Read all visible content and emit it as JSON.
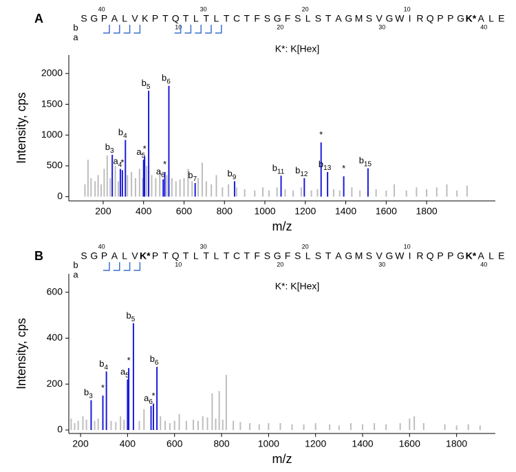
{
  "chart_data": [
    {
      "type": "bar",
      "panel_label": "A",
      "sequence": [
        "S",
        "G",
        "P",
        "A",
        "L",
        "V",
        "K",
        "P",
        "T",
        "Q",
        "T",
        "L",
        "T",
        "L",
        "T",
        "C",
        "T",
        "F",
        "S",
        "G",
        "F",
        "S",
        "L",
        "S",
        "T",
        "A",
        "G",
        "M",
        "S",
        "V",
        "G",
        "W",
        "I",
        "R",
        "Q",
        "P",
        "P",
        "G",
        "K*",
        "A",
        "L",
        "E"
      ],
      "numbers_above": [
        null,
        null,
        40,
        null,
        null,
        null,
        null,
        null,
        null,
        null,
        null,
        null,
        30,
        null,
        null,
        null,
        null,
        null,
        null,
        null,
        null,
        null,
        20,
        null,
        null,
        null,
        null,
        null,
        null,
        null,
        null,
        null,
        10,
        null,
        null,
        null,
        null,
        null,
        null,
        null,
        null,
        null
      ],
      "numbers_below": [
        null,
        null,
        null,
        null,
        null,
        null,
        null,
        null,
        null,
        10,
        null,
        null,
        null,
        null,
        null,
        null,
        null,
        null,
        null,
        20,
        null,
        null,
        null,
        null,
        null,
        null,
        null,
        null,
        null,
        30,
        null,
        null,
        null,
        null,
        null,
        null,
        null,
        null,
        null,
        40,
        null,
        null
      ],
      "fragment_rows": [
        "b",
        "a"
      ],
      "highlight_color": "#3a6fd0",
      "modification_note": "K*: K[Hex]",
      "xlabel": "m/z",
      "ylabel": "Intensity, cps",
      "xlim": [
        30,
        2140
      ],
      "xticks": [
        200,
        400,
        600,
        800,
        1000,
        1200,
        1400,
        1600,
        1800
      ],
      "ylim": [
        -70,
        2300
      ],
      "yticks": [
        0,
        500,
        1000,
        1500,
        2000
      ],
      "series": [
        {
          "color": "#bdbdbd",
          "x": [
            110,
            125,
            140,
            160,
            175,
            190,
            205,
            220,
            235,
            260,
            275,
            320,
            340,
            360,
            380,
            395,
            415,
            440,
            460,
            480,
            515,
            540,
            560,
            580,
            600,
            620,
            640,
            670,
            690,
            710,
            735,
            760,
            790,
            820,
            860,
            900,
            950,
            990,
            1020,
            1060,
            1100,
            1140,
            1180,
            1230,
            1260,
            1340,
            1370,
            1430,
            1470,
            1550,
            1600,
            1640,
            1700,
            1750,
            1800,
            1850,
            1900,
            1950,
            2000
          ],
          "values": [
            200,
            600,
            300,
            250,
            350,
            200,
            450,
            670,
            300,
            500,
            250,
            350,
            400,
            300,
            450,
            300,
            500,
            350,
            300,
            400,
            350,
            300,
            250,
            280,
            300,
            450,
            250,
            300,
            550,
            250,
            200,
            350,
            150,
            200,
            150,
            120,
            100,
            150,
            100,
            150,
            120,
            100,
            150,
            100,
            120,
            120,
            100,
            150,
            100,
            120,
            100,
            200,
            100,
            150,
            120,
            150,
            200,
            100,
            180
          ]
        },
        {
          "color": "#1a1adb",
          "x": [
            245,
            285,
            295,
            310,
            400,
            405,
            425,
            497,
            505,
            525,
            655,
            850,
            1080,
            1195,
            1278,
            1310,
            1390,
            1510
          ],
          "values": [
            680,
            450,
            430,
            920,
            600,
            650,
            1720,
            280,
            400,
            1800,
            220,
            250,
            340,
            300,
            880,
            400,
            330,
            460
          ],
          "peak_labels": [
            {
              "text": "b",
              "sub": "3"
            },
            {
              "text": "a",
              "sub": "4"
            },
            {
              "text": "*"
            },
            {
              "text": "b",
              "sub": "4"
            },
            {
              "text": "a",
              "sub": "5"
            },
            {
              "text": "*"
            },
            {
              "text": "b",
              "sub": "5"
            },
            {
              "text": "a",
              "sub": "6"
            },
            {
              "text": "*"
            },
            {
              "text": "b",
              "sub": "6"
            },
            {
              "text": "b",
              "sub": "7"
            },
            {
              "text": "b",
              "sub": "9"
            },
            {
              "text": "b",
              "sub": "11"
            },
            {
              "text": "b",
              "sub": "12"
            },
            {
              "text": "*"
            },
            {
              "text": "b",
              "sub": "13"
            },
            {
              "text": "*"
            },
            {
              "text": "b",
              "sub": "15"
            }
          ]
        }
      ]
    },
    {
      "type": "bar",
      "panel_label": "B",
      "sequence": [
        "S",
        "G",
        "P",
        "A",
        "L",
        "V",
        "K*",
        "P",
        "T",
        "Q",
        "T",
        "L",
        "T",
        "L",
        "T",
        "C",
        "T",
        "F",
        "S",
        "G",
        "F",
        "S",
        "L",
        "S",
        "T",
        "A",
        "G",
        "M",
        "S",
        "V",
        "G",
        "W",
        "I",
        "R",
        "Q",
        "P",
        "P",
        "G",
        "K*",
        "A",
        "L",
        "E"
      ],
      "numbers_above": [
        null,
        null,
        40,
        null,
        null,
        null,
        null,
        null,
        null,
        null,
        null,
        null,
        30,
        null,
        null,
        null,
        null,
        null,
        null,
        null,
        null,
        null,
        20,
        null,
        null,
        null,
        null,
        null,
        null,
        null,
        null,
        null,
        10,
        null,
        null,
        null,
        null,
        null,
        null,
        null,
        null,
        null
      ],
      "numbers_below": [
        null,
        null,
        null,
        null,
        null,
        null,
        null,
        null,
        null,
        10,
        null,
        null,
        null,
        null,
        null,
        null,
        null,
        null,
        null,
        20,
        null,
        null,
        null,
        null,
        null,
        null,
        null,
        null,
        null,
        30,
        null,
        null,
        null,
        null,
        null,
        null,
        null,
        null,
        null,
        40,
        null,
        null
      ],
      "fragment_rows": [
        "b",
        "a"
      ],
      "highlight_color": "#3a6fd0",
      "modification_note": "K*: K[Hex]",
      "xlabel": "m/z",
      "ylabel": "Intensity, cps",
      "xlim": [
        150,
        1965
      ],
      "xticks": [
        200,
        400,
        600,
        800,
        1000,
        1200,
        1400,
        1600,
        1800
      ],
      "ylim": [
        -15,
        680
      ],
      "yticks": [
        0,
        200,
        400,
        600
      ],
      "series": [
        {
          "color": "#bdbdbd",
          "x": [
            160,
            175,
            190,
            210,
            225,
            260,
            275,
            330,
            350,
            370,
            385,
            450,
            470,
            540,
            560,
            580,
            600,
            620,
            650,
            680,
            700,
            720,
            740,
            760,
            775,
            790,
            805,
            820,
            850,
            880,
            920,
            960,
            1000,
            1050,
            1100,
            1150,
            1200,
            1260,
            1300,
            1350,
            1400,
            1450,
            1500,
            1560,
            1600,
            1620,
            1660,
            1750,
            1800,
            1850,
            1900
          ],
          "values": [
            50,
            30,
            40,
            60,
            45,
            40,
            50,
            40,
            35,
            60,
            45,
            40,
            90,
            60,
            40,
            30,
            40,
            70,
            40,
            45,
            40,
            60,
            55,
            160,
            50,
            170,
            45,
            240,
            40,
            35,
            30,
            25,
            30,
            30,
            25,
            25,
            30,
            25,
            20,
            30,
            25,
            30,
            25,
            30,
            50,
            60,
            30,
            25,
            20,
            25,
            20
          ]
        },
        {
          "color": "#1a1adb",
          "x": [
            245,
            295,
            310,
            400,
            405,
            425,
            500,
            510,
            525
          ],
          "values": [
            130,
            150,
            255,
            220,
            270,
            465,
            105,
            115,
            275
          ],
          "peak_labels": [
            {
              "text": "b",
              "sub": "3"
            },
            {
              "text": "*"
            },
            {
              "text": "b",
              "sub": "4"
            },
            {
              "text": "a",
              "sub": "5"
            },
            {
              "text": "*"
            },
            {
              "text": "b",
              "sub": "5"
            },
            {
              "text": "a",
              "sub": "6"
            },
            {
              "text": "*"
            },
            {
              "text": "b",
              "sub": "6"
            }
          ]
        }
      ]
    }
  ]
}
